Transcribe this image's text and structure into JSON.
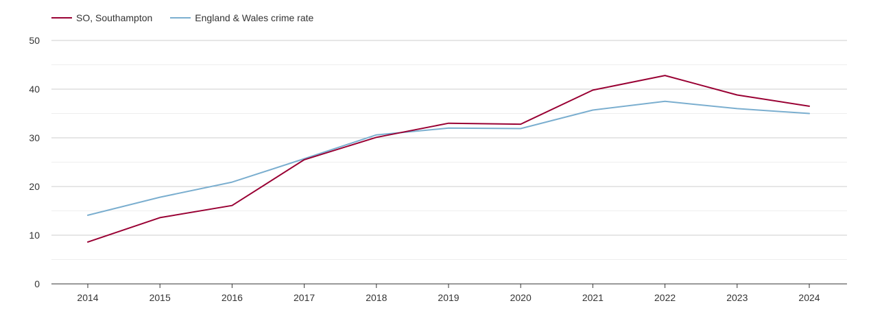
{
  "colors": {
    "southampton": "#990033",
    "england_wales": "#7aaecf",
    "grid_major": "#cccccc",
    "grid_minor": "#eeeeee",
    "axis": "#333333"
  },
  "chart_data": {
    "type": "line",
    "x": [
      "2014",
      "2015",
      "2016",
      "2017",
      "2018",
      "2019",
      "2020",
      "2021",
      "2022",
      "2023",
      "2024"
    ],
    "series": [
      {
        "name": "SO, Southampton",
        "color": "#990033",
        "values": [
          8.6,
          13.6,
          16.1,
          25.5,
          30.1,
          33.0,
          32.8,
          39.8,
          42.8,
          38.8,
          36.5
        ]
      },
      {
        "name": "England & Wales crime rate",
        "color": "#7aaecf",
        "values": [
          14.1,
          17.8,
          20.9,
          25.7,
          30.6,
          32.0,
          31.9,
          35.7,
          37.5,
          36.0,
          35.0
        ]
      }
    ],
    "yticks": [
      "0",
      "10",
      "20",
      "30",
      "40",
      "50"
    ],
    "ylim": [
      0,
      50
    ],
    "grid": true,
    "legend_position": "top-left"
  }
}
